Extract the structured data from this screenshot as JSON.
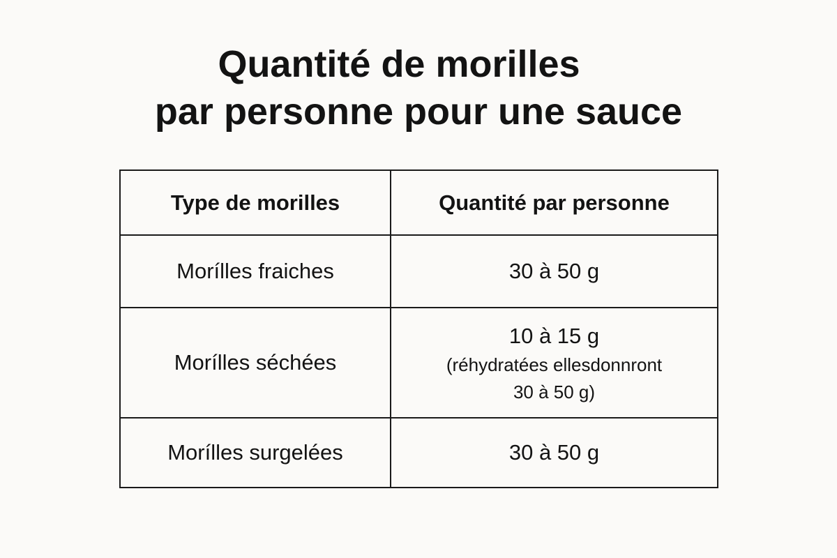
{
  "page": {
    "background_color": "#fbfaf8",
    "text_color": "#131313",
    "border_color": "#1a1a1a"
  },
  "title": {
    "line1": "Quantité de morilles",
    "line2": "par personne pour une sauce"
  },
  "table": {
    "headers": [
      "Type de morilles",
      "Quantité par personne"
    ],
    "rows": [
      {
        "type": "Morílles fraiches",
        "quantity": "30 à 50 g",
        "note_lines": []
      },
      {
        "type": "Morílles séchées",
        "quantity": "10 à 15 g",
        "note_lines": [
          "(réhydratées ellesdonnront",
          "30 à 50 g)"
        ]
      },
      {
        "type": "Morílles surgelées",
        "quantity": "30 à 50 g",
        "note_lines": []
      }
    ]
  },
  "chart_data": {
    "type": "table",
    "title": "Quantité de morilles par personne pour une sauce",
    "columns": [
      "Type de morilles",
      "Quantité par personne"
    ],
    "rows": [
      [
        "Morílles fraiches",
        "30 à 50 g"
      ],
      [
        "Morílles séchées",
        "10 à 15 g (réhydratées ellesdonnront 30 à 50 g)"
      ],
      [
        "Morílles surgelées",
        "30 à 50 g"
      ]
    ],
    "layout": {
      "grid": "full-borders",
      "header_style": "bold",
      "alignment": "center"
    }
  }
}
